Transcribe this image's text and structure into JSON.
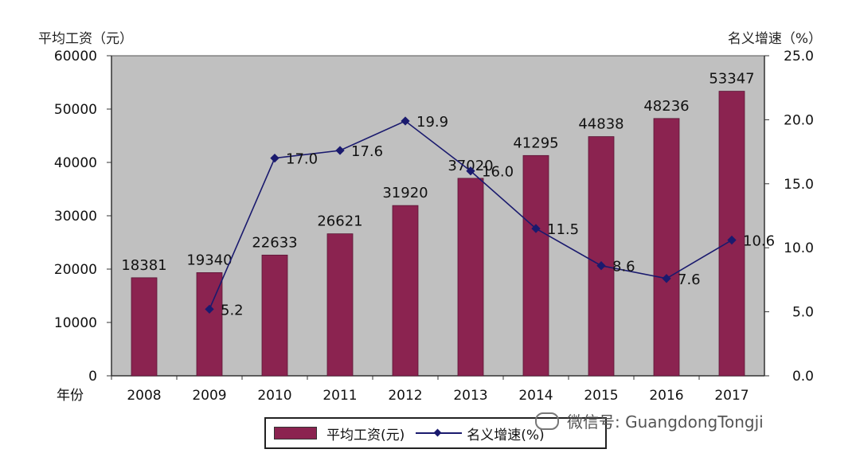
{
  "chart_data": {
    "type": "bar",
    "categories": [
      "2008",
      "2009",
      "2010",
      "2011",
      "2012",
      "2013",
      "2014",
      "2015",
      "2016",
      "2017"
    ],
    "x_axis_prefix": "年份",
    "series": [
      {
        "name": "平均工资(元)",
        "type": "bar",
        "axis": "left",
        "color": "#8b2350",
        "values": [
          18381,
          19340,
          22633,
          26621,
          31920,
          37020,
          41295,
          44838,
          48236,
          53347
        ],
        "labels": [
          "18381",
          "19340",
          "22633",
          "26621",
          "31920",
          "37020",
          "41295",
          "44838",
          "48236",
          "53347"
        ]
      },
      {
        "name": "名义增速(%)",
        "type": "line",
        "axis": "right",
        "color": "#1a1a6e",
        "values": [
          null,
          5.2,
          17.0,
          17.6,
          19.9,
          16.0,
          11.5,
          8.6,
          7.6,
          10.6
        ],
        "labels": [
          "",
          "5.2",
          "17.0",
          "17.6",
          "19.9",
          "16.0",
          "11.5",
          "8.6",
          "7.6",
          "10.6"
        ]
      }
    ],
    "left_axis": {
      "title": "平均工资（元）",
      "ylim": [
        0,
        60000
      ],
      "ticks": [
        "0",
        "10000",
        "20000",
        "30000",
        "40000",
        "50000",
        "60000"
      ]
    },
    "right_axis": {
      "title": "名义增速（%）",
      "ylim": [
        0,
        25
      ],
      "ticks": [
        "0.0",
        "5.0",
        "10.0",
        "15.0",
        "20.0",
        "25.0"
      ]
    },
    "grid": false,
    "plot_background": "#c0c0c0",
    "legend_position": "bottom"
  },
  "legend": {
    "bar_label": "平均工资(元)",
    "line_label": "名义增速(%)"
  },
  "watermark": "微信号: GuangdongTongji"
}
